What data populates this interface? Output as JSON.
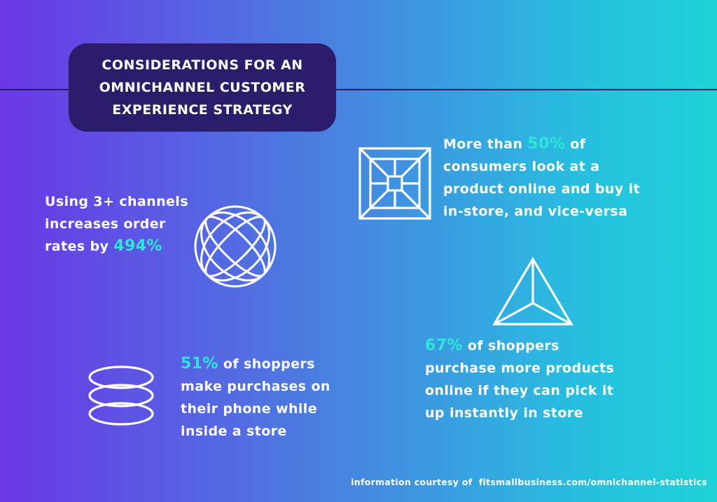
{
  "title": "CONSIDERATIONS FOR AN\nOMNICHANNEL CUSTOMER\nEXPERIENCE STRATEGY",
  "stats": {
    "channels": {
      "pre": "Using 3+ channels\nincreases order\nrates by ",
      "highlight": "494%"
    },
    "consumers": {
      "pre": "More than ",
      "highlight": "50%",
      "post": " of\nconsumers look at a\nproduct online and buy it\nin-store, and vice-versa"
    },
    "phone": {
      "highlight": "51%",
      "post": " of shoppers\nmake purchases on\ntheir phone while\ninside a store"
    },
    "pickup": {
      "highlight": "67%",
      "post": " of shoppers\npurchase more products\nonline if they can pick it\nup instantly in store"
    }
  },
  "footer": {
    "prefix": "information courtesy of",
    "source": "fitsmallbusiness.com/omnichannel-statistics"
  },
  "colors": {
    "highlight": "#2de7d9",
    "title_box": "#2b1c6c",
    "gradient_start": "#6a37e6",
    "gradient_end": "#1ed3d8"
  },
  "icons": [
    "square-pyramid-icon",
    "globe-wireframe-icon",
    "triangle-pyramid-icon",
    "stacked-rings-icon"
  ]
}
